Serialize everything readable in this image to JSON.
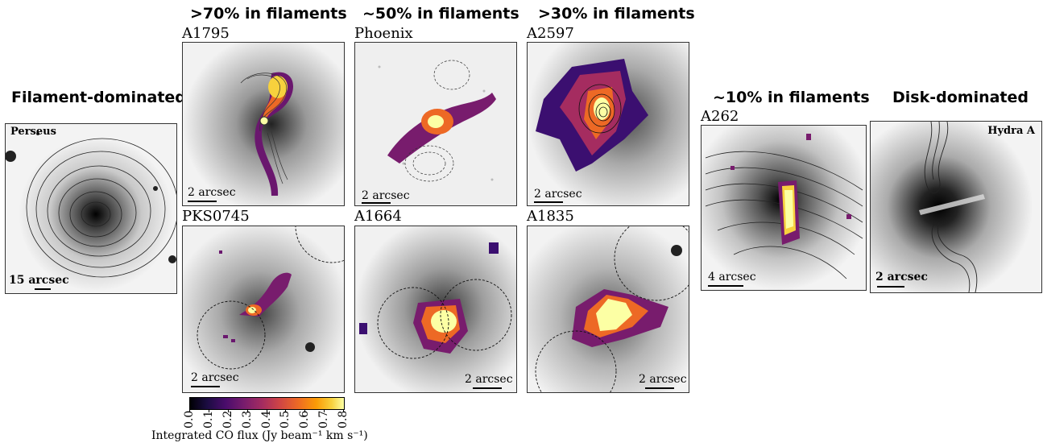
{
  "headers": {
    "filament_dominated": "Filament-dominated",
    "gt70": ">70% in filaments",
    "approx50": "~50% in filaments",
    "gt30": ">30% in filaments",
    "approx10": "~10% in filaments",
    "disk_dominated": "Disk-dominated"
  },
  "clusters": {
    "a1795": "A1795",
    "phoenix": "Phoenix",
    "a2597": "A2597",
    "pks0745": "PKS0745",
    "a1664": "A1664",
    "a1835": "A1835",
    "a262": "A262"
  },
  "inset_labels": {
    "perseus": "Perseus",
    "hydra": "Hydra A"
  },
  "scalebars": {
    "perseus": "15 arcsec",
    "a1795": "2 arcsec",
    "phoenix": "2 arcsec",
    "a2597": "2 arcsec",
    "pks0745": "2 arcsec",
    "a1664": "2 arcsec",
    "a1835": "2 arcsec",
    "a262": "4 arcsec",
    "hydra": "2 arcsec"
  },
  "colorbar": {
    "ticks": [
      "0.0",
      "0.1",
      "0.2",
      "0.3",
      "0.4",
      "0.5",
      "0.6",
      "0.7",
      "0.8"
    ],
    "range": [
      0.0,
      0.8
    ],
    "label": "Integrated CO flux (Jy beam⁻¹ km s⁻¹)",
    "colormap": "inferno"
  }
}
